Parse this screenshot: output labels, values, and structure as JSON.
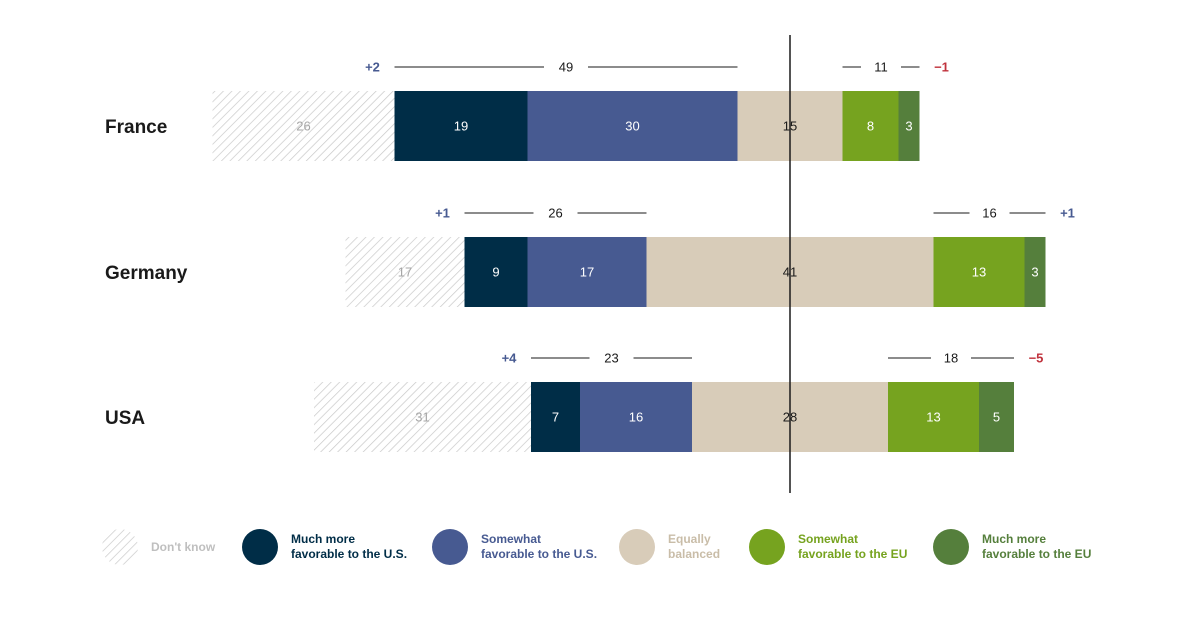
{
  "chart_data": {
    "type": "bar",
    "orientation": "horizontal-stacked-diverging",
    "categories": [
      "France",
      "Germany",
      "USA"
    ],
    "series": [
      {
        "key": "dk",
        "name": "Don't know",
        "values": [
          26,
          17,
          31
        ],
        "color": "#d9d9d9",
        "label_color": "#a6a6a6"
      },
      {
        "key": "mus",
        "name": "Much more favorable to the U.S.",
        "values": [
          19,
          9,
          7
        ],
        "color": "#002d47",
        "label_color": "#ffffff"
      },
      {
        "key": "sus",
        "name": "Somewhat favorable to the U.S.",
        "values": [
          30,
          17,
          16
        ],
        "color": "#475a91",
        "label_color": "#ffffff"
      },
      {
        "key": "eq",
        "name": "Equally balanced",
        "values": [
          15,
          41,
          28
        ],
        "color": "#d8ccb9",
        "label_color": "#1a1a1a"
      },
      {
        "key": "seu",
        "name": "Somewhat favorable to the EU",
        "values": [
          8,
          13,
          13
        ],
        "color": "#76a31f",
        "label_color": "#ffffff"
      },
      {
        "key": "meu",
        "name": "Much more favorable to the EU",
        "values": [
          3,
          3,
          5
        ],
        "color": "#557f3c",
        "label_color": "#ffffff"
      }
    ],
    "summaries": {
      "us_total": [
        "49",
        "26",
        "23"
      ],
      "us_change": [
        "+2",
        "+1",
        "+4"
      ],
      "eu_total": [
        "11",
        "16",
        "18"
      ],
      "eu_change": [
        "−1",
        "+1",
        "−5"
      ]
    },
    "change_colors": {
      "positive": "#475a91",
      "negative": "#c0323c"
    },
    "legend": [
      {
        "key": "dk",
        "lines": [
          "Don't know"
        ],
        "color": "#d9d9d9",
        "text_color": "#bfbfbf",
        "hatched": true
      },
      {
        "key": "mus",
        "lines": [
          "Much more",
          "favorable to the U.S."
        ],
        "color": "#002d47",
        "text_color": "#002d47"
      },
      {
        "key": "sus",
        "lines": [
          "Somewhat",
          "favorable to the U.S."
        ],
        "color": "#475a91",
        "text_color": "#475a91"
      },
      {
        "key": "eq",
        "lines": [
          "Equally",
          "balanced"
        ],
        "color": "#d8ccb9",
        "text_color": "#c9bda8"
      },
      {
        "key": "seu",
        "lines": [
          "Somewhat",
          "favorable to the EU"
        ],
        "color": "#76a31f",
        "text_color": "#76a31f"
      },
      {
        "key": "meu",
        "lines": [
          "Much more",
          "favorable to the EU"
        ],
        "color": "#557f3c",
        "text_color": "#557f3c"
      }
    ]
  }
}
